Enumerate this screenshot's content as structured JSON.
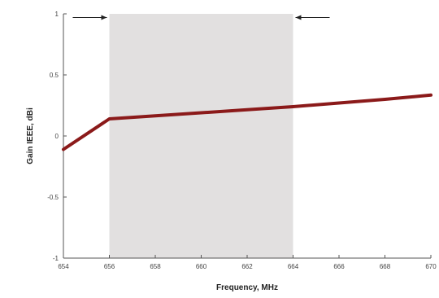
{
  "chart_data": {
    "type": "line",
    "xlabel": "Frequency, MHz",
    "ylabel": "Gain IEEE, dBi",
    "xlim": [
      654,
      670
    ],
    "ylim": [
      -1,
      1
    ],
    "x_ticks": [
      654,
      656,
      658,
      660,
      662,
      664,
      666,
      668,
      670
    ],
    "x_tick_labels": [
      "654",
      "656",
      "658",
      "660",
      "662",
      "664",
      "666",
      "668",
      "670"
    ],
    "y_ticks": [
      1,
      0.5,
      0,
      -0.5,
      -1
    ],
    "y_tick_labels": [
      "1",
      "0.5",
      "0",
      "-0.5",
      "-1"
    ],
    "grid": false,
    "highlight_band": {
      "x_start": 656,
      "x_end": 664,
      "color": "#e2e0e0"
    },
    "arrows": [
      {
        "direction": "right",
        "points_to_x": 656,
        "y": 0.97
      },
      {
        "direction": "left",
        "points_to_x": 664,
        "y": 0.97
      }
    ],
    "series": [
      {
        "color": "#8b1a1a",
        "x": [
          654,
          656,
          658,
          660,
          662,
          664,
          666,
          668,
          670
        ],
        "y": [
          -0.11,
          0.14,
          0.165,
          0.19,
          0.215,
          0.24,
          0.27,
          0.3,
          0.335
        ]
      }
    ]
  }
}
